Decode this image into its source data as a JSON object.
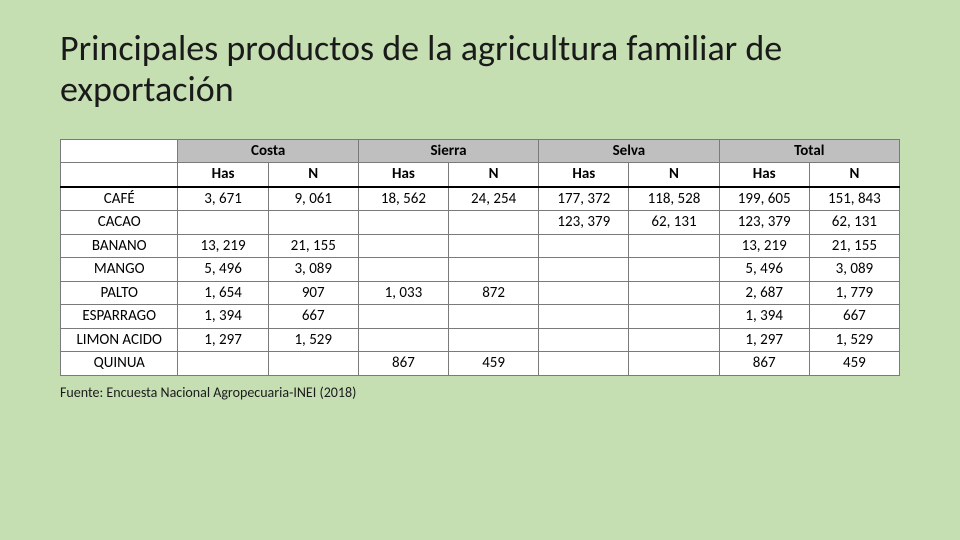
{
  "title": "Principales productos de la agricultura familiar de exportación",
  "source": "Fuente: Encuesta Nacional Agropecuaria-INEI (2018)",
  "table": {
    "type": "table",
    "background_color": "#ffffff",
    "header_bg": "#bfbfbf",
    "border_color": "#7a7a7a",
    "regions": [
      "Costa",
      "Sierra",
      "Selva",
      "Total"
    ],
    "metrics": [
      "Has",
      "N"
    ],
    "product_col_width_pct": 14,
    "data_col_width_pct": 10.75,
    "rows": [
      {
        "product": "CAFÉ",
        "cells": [
          "3, 671",
          "9, 061",
          "18, 562",
          "24, 254",
          "177, 372",
          "118, 528",
          "199, 605",
          "151, 843"
        ]
      },
      {
        "product": "CACAO",
        "cells": [
          "",
          "",
          "",
          "",
          "123, 379",
          "62, 131",
          "123, 379",
          "62, 131"
        ]
      },
      {
        "product": "BANANO",
        "cells": [
          "13, 219",
          "21, 155",
          "",
          "",
          "",
          "",
          "13, 219",
          "21, 155"
        ]
      },
      {
        "product": "MANGO",
        "cells": [
          "5, 496",
          "3, 089",
          "",
          "",
          "",
          "",
          "5, 496",
          "3, 089"
        ]
      },
      {
        "product": "PALTO",
        "cells": [
          "1, 654",
          "907",
          "1, 033",
          "872",
          "",
          "",
          "2, 687",
          "1, 779"
        ]
      },
      {
        "product": "ESPARRAGO",
        "cells": [
          "1, 394",
          "667",
          "",
          "",
          "",
          "",
          "1, 394",
          "667"
        ]
      },
      {
        "product": "LIMON ACIDO",
        "cells": [
          "1, 297",
          "1, 529",
          "",
          "",
          "",
          "",
          "1, 297",
          "1, 529"
        ]
      },
      {
        "product": "QUINUA",
        "cells": [
          "",
          "",
          "867",
          "459",
          "",
          "",
          "867",
          "459"
        ]
      }
    ]
  },
  "page_background": "#c5dfb3",
  "title_fontsize": 36,
  "body_fontsize": 15,
  "source_fontsize": 14
}
